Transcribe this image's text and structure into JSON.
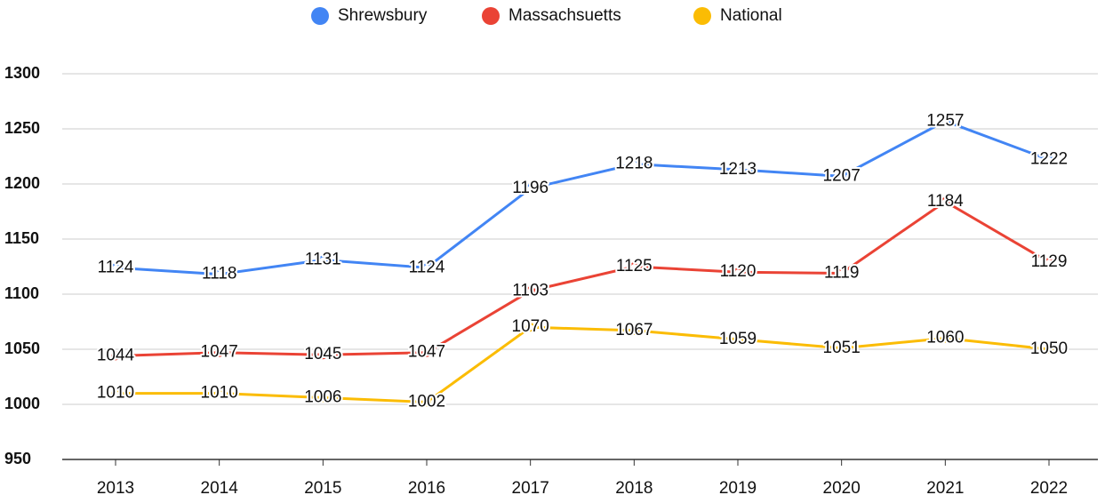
{
  "chart_data": {
    "type": "line",
    "categories": [
      "2013",
      "2014",
      "2015",
      "2016",
      "2017",
      "2018",
      "2019",
      "2020",
      "2021",
      "2022"
    ],
    "series": [
      {
        "name": "Shrewsbury",
        "color": "#4285f4",
        "values": [
          1124,
          1118,
          1131,
          1124,
          1196,
          1218,
          1213,
          1207,
          1257,
          1222
        ]
      },
      {
        "name": "Massachsuetts",
        "color": "#ea4335",
        "values": [
          1044,
          1047,
          1045,
          1047,
          1103,
          1125,
          1120,
          1119,
          1184,
          1129
        ]
      },
      {
        "name": "National",
        "color": "#fbbc04",
        "values": [
          1010,
          1010,
          1006,
          1002,
          1070,
          1067,
          1059,
          1051,
          1060,
          1050
        ]
      }
    ],
    "ylim": [
      950,
      1300
    ],
    "yticks": [
      950,
      1000,
      1050,
      1100,
      1150,
      1200,
      1250,
      1300
    ],
    "grid": true,
    "legend": "top"
  }
}
